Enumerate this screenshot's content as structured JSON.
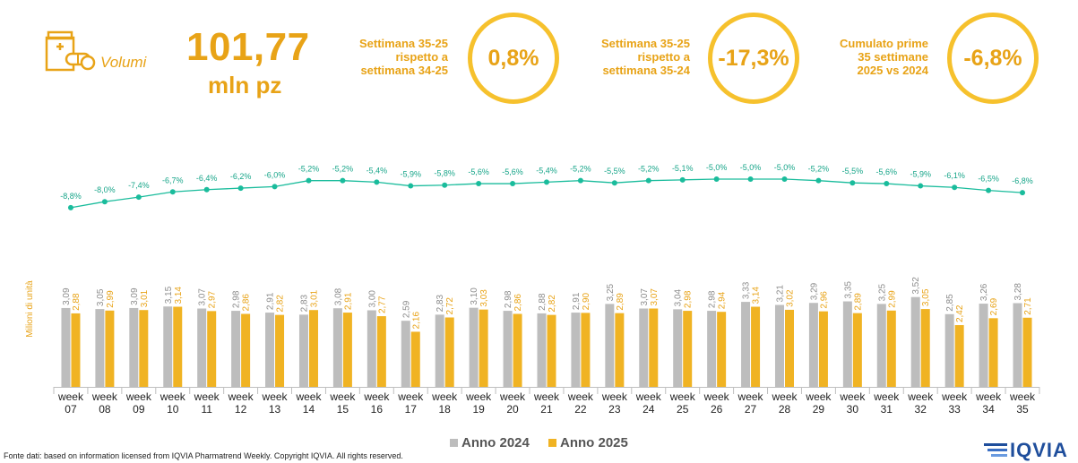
{
  "header": {
    "volumi_label": "Volumi",
    "big_value": "101,77",
    "big_unit": "mln pz",
    "icon": "medicine-box-icon"
  },
  "kpis": [
    {
      "label": "Settimana 35-25\nrispetto a\nsettimana 34-25",
      "value": "0,8%"
    },
    {
      "label": "Settimana 35-25\nrispetto a\nsettimana 35-24",
      "value": "-17,3%"
    },
    {
      "label": "Cumulato prime\n35 settimane\n2025 vs 2024",
      "value": "-6,8%"
    }
  ],
  "colors": {
    "anno_2024": "#BDBDBD",
    "anno_2025": "#F0B323",
    "line": "#1ABC9C",
    "accent": "#E8A317"
  },
  "footer": {
    "source": "Fonte dati: based on information licensed from IQVIA Pharmatrend Weekly. Copyright IQVIA. All rights reserved."
  },
  "logo": {
    "text": "IQVIA",
    "icon": "iqvia-logo-icon"
  },
  "chart_data": {
    "type": "bar",
    "ylabel": "Milioni di unità",
    "category_prefix": "week",
    "categories": [
      "07",
      "08",
      "09",
      "10",
      "11",
      "12",
      "13",
      "14",
      "15",
      "16",
      "17",
      "18",
      "19",
      "20",
      "21",
      "22",
      "23",
      "24",
      "25",
      "26",
      "27",
      "28",
      "29",
      "30",
      "31",
      "32",
      "33",
      "34",
      "35"
    ],
    "series": [
      {
        "name": "Anno 2024",
        "values": [
          3.09,
          3.05,
          3.09,
          3.15,
          3.07,
          2.98,
          2.91,
          2.83,
          3.08,
          3.0,
          2.59,
          2.83,
          3.1,
          2.98,
          2.88,
          2.91,
          3.25,
          3.07,
          3.04,
          2.98,
          3.33,
          3.21,
          3.29,
          3.35,
          3.25,
          3.52,
          2.85,
          3.26,
          3.28
        ],
        "labels": [
          "3,09",
          "3,05",
          "3,09",
          "3,15",
          "3,07",
          "2,98",
          "2,91",
          "2,83",
          "3,08",
          "3,00",
          "2,59",
          "2,83",
          "3,10",
          "2,98",
          "2,88",
          "2,91",
          "3,25",
          "3,07",
          "3,04",
          "2,98",
          "3,33",
          "3,21",
          "3,29",
          "3,35",
          "3,25",
          "3,52",
          "2,85",
          "3,26",
          "3,28"
        ]
      },
      {
        "name": "Anno 2025",
        "values": [
          2.88,
          2.99,
          3.01,
          3.14,
          2.97,
          2.86,
          2.82,
          3.01,
          2.91,
          2.77,
          2.16,
          2.72,
          3.03,
          2.86,
          2.82,
          2.9,
          2.89,
          3.07,
          2.98,
          2.94,
          3.14,
          3.02,
          2.96,
          2.89,
          2.99,
          3.05,
          2.42,
          2.69,
          2.71
        ],
        "labels": [
          "2,88",
          "2,99",
          "3,01",
          "3,14",
          "2,97",
          "2,86",
          "2,82",
          "3,01",
          "2,91",
          "2,77",
          "2,16",
          "2,72",
          "3,03",
          "2,86",
          "2,82",
          "2,90",
          "2,89",
          "3,07",
          "2,98",
          "2,94",
          "3,14",
          "3,02",
          "2,96",
          "2,89",
          "2,99",
          "3,05",
          "2,42",
          "2,69",
          "2,71"
        ]
      }
    ],
    "cumulative_change": {
      "values": [
        -8.8,
        -8.0,
        -7.4,
        -6.7,
        -6.4,
        -6.2,
        -6.0,
        -5.2,
        -5.2,
        -5.4,
        -5.9,
        -5.8,
        -5.6,
        -5.6,
        -5.4,
        -5.2,
        -5.5,
        -5.2,
        -5.1,
        -5.0,
        -5.0,
        -5.0,
        -5.2,
        -5.5,
        -5.6,
        -5.9,
        -6.1,
        -6.5,
        -6.8
      ],
      "labels": [
        "-8,8%",
        "-8,0%",
        "-7,4%",
        "-6,7%",
        "-6,4%",
        "-6,2%",
        "-6,0%",
        "-5,2%",
        "-5,2%",
        "-5,4%",
        "-5,9%",
        "-5,8%",
        "-5,6%",
        "-5,6%",
        "-5,4%",
        "-5,2%",
        "-5,5%",
        "-5,2%",
        "-5,1%",
        "-5,0%",
        "-5,0%",
        "-5,0%",
        "-5,2%",
        "-5,5%",
        "-5,6%",
        "-5,9%",
        "-6,1%",
        "-6,5%",
        "-6,8%"
      ]
    },
    "legend_position": "bottom"
  }
}
